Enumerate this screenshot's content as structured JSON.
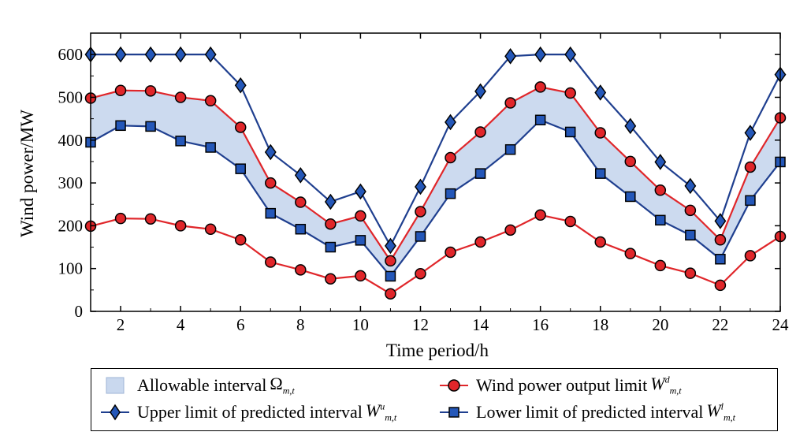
{
  "chart_data": {
    "type": "line",
    "xlabel": "Time period/h",
    "ylabel": "Wind power/MW",
    "xlim": [
      1,
      24
    ],
    "ylim": [
      0,
      650
    ],
    "x_ticks": [
      2,
      4,
      6,
      8,
      10,
      12,
      14,
      16,
      18,
      20,
      22,
      24
    ],
    "y_ticks": [
      0,
      100,
      200,
      300,
      400,
      500,
      600
    ],
    "x": [
      1,
      2,
      3,
      4,
      5,
      6,
      7,
      8,
      9,
      10,
      11,
      12,
      13,
      14,
      15,
      16,
      17,
      18,
      19,
      20,
      21,
      22,
      23,
      24
    ],
    "series": [
      {
        "name": "Upper limit of predicted interval",
        "symbol": "W",
        "sup": "u",
        "sub": "m,t",
        "marker": "diamond",
        "color": "#1f3f8f",
        "values": [
          600,
          600,
          600,
          600,
          600,
          528,
          372,
          318,
          256,
          280,
          153,
          291,
          442,
          514,
          596,
          600,
          600,
          511,
          433,
          349,
          293,
          211,
          417,
          553
        ]
      },
      {
        "name": "Wind power output limit (upper)",
        "marker": "circle",
        "color": "#e0262a",
        "values": [
          498,
          516,
          515,
          500,
          492,
          430,
          300,
          255,
          204,
          223,
          118,
          233,
          359,
          419,
          487,
          524,
          510,
          417,
          350,
          283,
          236,
          167,
          337,
          452
        ]
      },
      {
        "name": "Lower limit of predicted interval",
        "symbol": "W",
        "sup": "l",
        "sub": "m,t",
        "marker": "square",
        "color": "#1f3f8f",
        "values": [
          395,
          434,
          432,
          398,
          383,
          333,
          229,
          192,
          150,
          166,
          82,
          175,
          275,
          322,
          378,
          447,
          419,
          322,
          268,
          213,
          178,
          122,
          259,
          349
        ]
      },
      {
        "name": "Wind power output limit (lower)",
        "marker": "circle",
        "color": "#e0262a",
        "values": [
          199,
          217,
          216,
          200,
          192,
          167,
          115,
          97,
          76,
          83,
          41,
          88,
          138,
          162,
          190,
          225,
          210,
          162,
          135,
          107,
          89,
          61,
          130,
          175
        ]
      }
    ],
    "shaded_region": {
      "name": "Allowable interval",
      "symbol": "Ω",
      "sub": "m,t",
      "upper_series": 1,
      "lower_series": 2,
      "color": "#c9d8ee"
    }
  },
  "legend": {
    "allowable": {
      "text": "Allowable interval",
      "sym": "Ω",
      "sub": "m,t"
    },
    "output": {
      "text": "Wind power output limit",
      "sym": "W",
      "sup": "d",
      "sub": "m,t"
    },
    "upper": {
      "text": "Upper limit of predicted interval",
      "sym": "W",
      "sup": "u",
      "sub": "m,t"
    },
    "lower": {
      "text": "Lower limit of predicted interval",
      "sym": "W",
      "sup": "l",
      "sub": "m,t"
    }
  },
  "colors": {
    "blue": "#1f3f8f",
    "marker_blue": "#2457b8",
    "red": "#e0262a",
    "fill": "#c9d8ee"
  }
}
